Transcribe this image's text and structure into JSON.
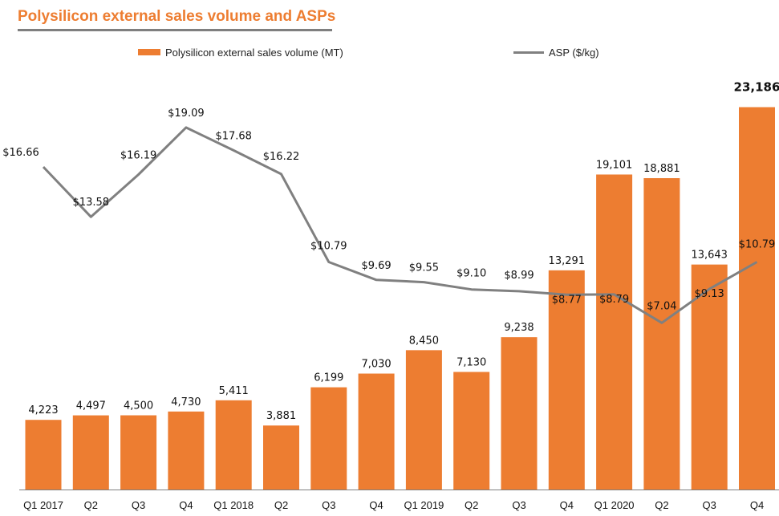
{
  "title": "Polysilicon external sales volume and ASPs",
  "legend": {
    "bar_label": "Polysilicon external sales volume (MT)",
    "line_label": "ASP ($/kg)"
  },
  "colors": {
    "bar": "#ED7D31",
    "line": "#808080",
    "title": "#ED7D31"
  },
  "chart_data": {
    "type": "bar",
    "title": "Polysilicon external sales volume and ASPs",
    "xlabel": "",
    "ylabel": "",
    "categories": [
      "Q1 2017",
      "Q2",
      "Q3",
      "Q4",
      "Q1 2018",
      "Q2",
      "Q3",
      "Q4",
      "Q1 2019",
      "Q2",
      "Q3",
      "Q4",
      "Q1 2020",
      "Q2",
      "Q3",
      "Q4"
    ],
    "series": [
      {
        "name": "Polysilicon external sales volume (MT)",
        "type": "bar",
        "axis": "left",
        "values": [
          4223,
          4497,
          4500,
          4730,
          5411,
          3881,
          6199,
          7030,
          8450,
          7130,
          9238,
          13291,
          19101,
          18881,
          13643,
          23186
        ],
        "labels": [
          "4,223",
          "4,497",
          "4,500",
          "4,730",
          "5,411",
          "3,881",
          "6,199",
          "7,030",
          "8,450",
          "7,130",
          "9,238",
          "13,291",
          "19,101",
          "18,881",
          "13,643",
          "23,186"
        ]
      },
      {
        "name": "ASP ($/kg)",
        "type": "line",
        "axis": "right",
        "values": [
          16.66,
          13.58,
          16.19,
          19.09,
          17.68,
          16.22,
          10.79,
          9.69,
          9.55,
          9.1,
          8.99,
          8.77,
          8.79,
          7.04,
          9.13,
          10.79
        ],
        "labels": [
          "$16.66",
          "$13.58",
          "$16.19",
          "$19.09",
          "$17.68",
          "$16.22",
          "$10.79",
          "$9.69",
          "$9.55",
          "$9.10",
          "$8.99",
          "$8.77",
          "$8.79",
          "$7.04",
          "$9.13",
          "$10.79"
        ]
      }
    ],
    "ylim": [
      0,
      25000
    ],
    "y2lim": [
      -5,
      23
    ],
    "grid": false,
    "legend": "top"
  }
}
